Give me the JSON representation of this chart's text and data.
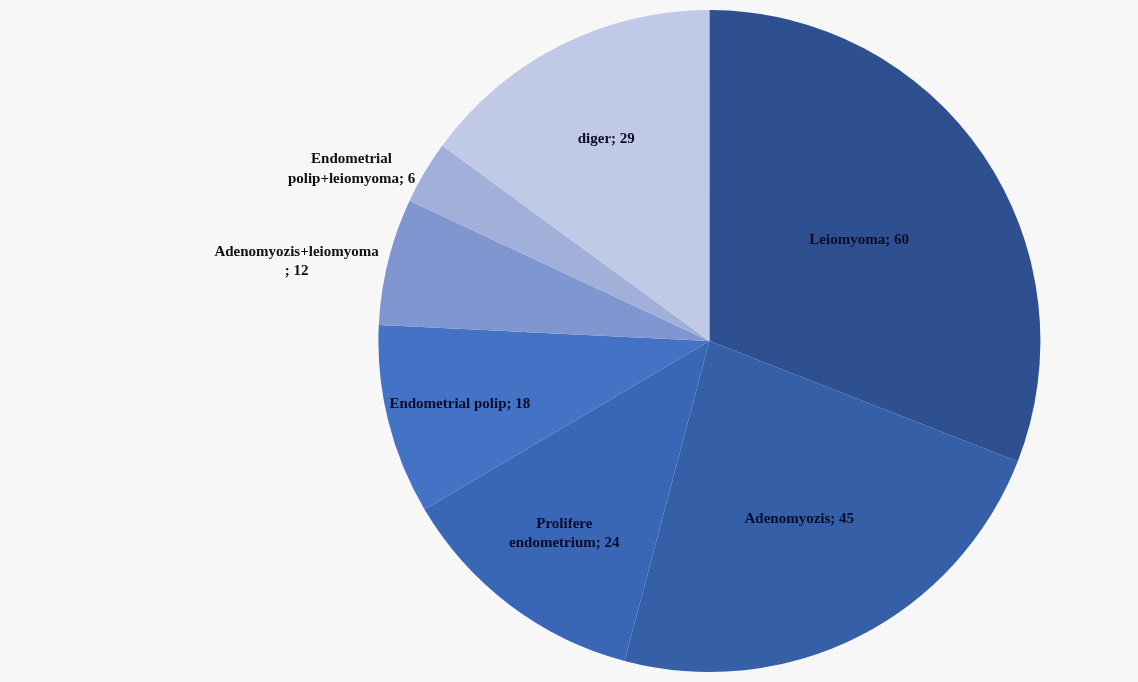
{
  "chart_data": {
    "type": "pie",
    "categories": [
      "Leiomyoma",
      "Adenomyozis",
      "Prolifere endometrium",
      "Endometrial polip",
      "Adenomyozis+leiomyoma",
      "Endometrial polip+leiomyoma",
      "diger"
    ],
    "values": [
      60,
      45,
      24,
      18,
      12,
      6,
      29
    ],
    "colors": [
      "#2e5090",
      "#3560a8",
      "#3a67b5",
      "#4472c4",
      "#7f96d0",
      "#a0b0d8",
      "#c0cae6"
    ],
    "value_labels": [
      "; 60",
      "; 45",
      "; 24",
      "; 18",
      "; 12",
      "; 6",
      "; 29"
    ],
    "legend": false
  }
}
